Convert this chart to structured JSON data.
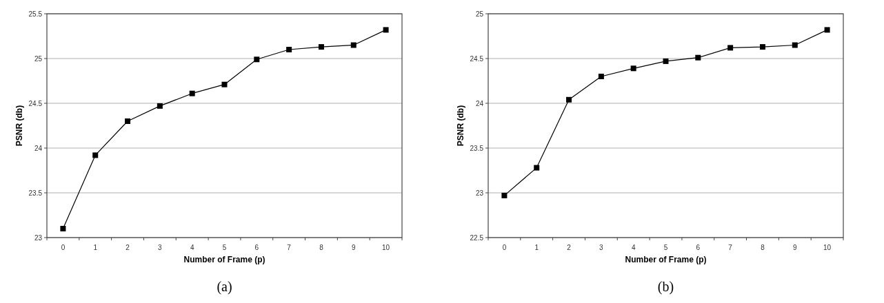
{
  "chart_data": [
    {
      "type": "line",
      "title": "(a)",
      "xlabel": "Number of Frame (p)",
      "ylabel": "PSNR (db)",
      "categories": [
        "0",
        "1",
        "2",
        "3",
        "4",
        "5",
        "6",
        "7",
        "8",
        "9",
        "10"
      ],
      "series": [
        {
          "color": "#000000",
          "values": [
            23.1,
            23.92,
            24.3,
            24.47,
            24.61,
            24.71,
            24.99,
            25.1,
            25.13,
            25.15,
            25.32
          ]
        }
      ],
      "ylim": [
        23,
        25.5
      ],
      "yticks": [
        23,
        23.5,
        24,
        24.5,
        25,
        25.5
      ],
      "grid": "y",
      "marker": "square"
    },
    {
      "type": "line",
      "title": "(b)",
      "xlabel": "Number of Frame (p)",
      "ylabel": "PSNR (db)",
      "categories": [
        "0",
        "1",
        "2",
        "3",
        "4",
        "5",
        "6",
        "7",
        "8",
        "9",
        "10"
      ],
      "series": [
        {
          "color": "#000000",
          "values": [
            22.97,
            23.28,
            24.04,
            24.3,
            24.39,
            24.47,
            24.51,
            24.62,
            24.63,
            24.65,
            24.82
          ]
        }
      ],
      "ylim": [
        22.5,
        25
      ],
      "yticks": [
        22.5,
        23,
        23.5,
        24,
        24.5,
        25
      ],
      "grid": "y",
      "marker": "square"
    }
  ]
}
